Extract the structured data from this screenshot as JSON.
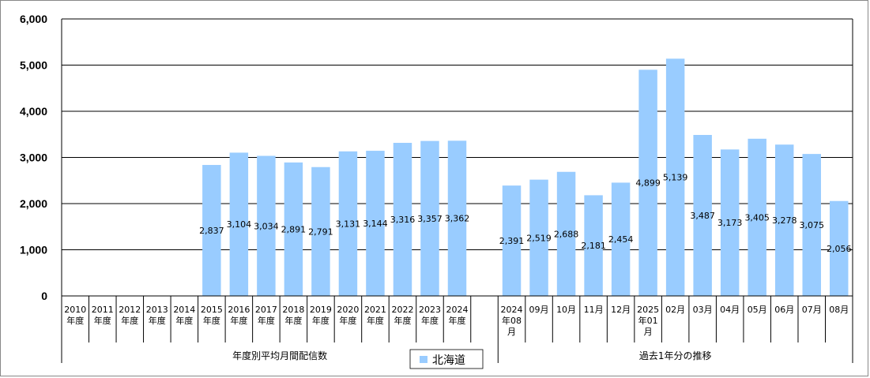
{
  "chart_data": {
    "type": "bar",
    "ylim": [
      0,
      6000
    ],
    "yticks": [
      "0",
      "1,000",
      "2,000",
      "3,000",
      "4,000",
      "5,000",
      "6,000"
    ],
    "grid": true,
    "legend_position": "bottom-center",
    "bar_color": "#99CCFF",
    "categories": [
      {
        "line1": "2010",
        "line2": "年度"
      },
      {
        "line1": "2011",
        "line2": "年度"
      },
      {
        "line1": "2012",
        "line2": "年度"
      },
      {
        "line1": "2013",
        "line2": "年度"
      },
      {
        "line1": "2014",
        "line2": "年度"
      },
      {
        "line1": "2015",
        "line2": "年度"
      },
      {
        "line1": "2016",
        "line2": "年度"
      },
      {
        "line1": "2017",
        "line2": "年度"
      },
      {
        "line1": "2018",
        "line2": "年度"
      },
      {
        "line1": "2019",
        "line2": "年度"
      },
      {
        "line1": "2020",
        "line2": "年度"
      },
      {
        "line1": "2021",
        "line2": "年度"
      },
      {
        "line1": "2022",
        "line2": "年度"
      },
      {
        "line1": "2023",
        "line2": "年度"
      },
      {
        "line1": "2024",
        "line2": "年度"
      },
      {
        "line1": "",
        "line2": ""
      },
      {
        "line1": "2024",
        "line2": "年08",
        "line3": "月"
      },
      {
        "line1": "09月"
      },
      {
        "line1": "10月"
      },
      {
        "line1": "11月"
      },
      {
        "line1": "12月"
      },
      {
        "line1": "2025",
        "line2": "年01",
        "line3": "月"
      },
      {
        "line1": "02月"
      },
      {
        "line1": "03月"
      },
      {
        "line1": "04月"
      },
      {
        "line1": "05月"
      },
      {
        "line1": "06月"
      },
      {
        "line1": "07月"
      },
      {
        "line1": "08月"
      }
    ],
    "series": [
      {
        "name": "北海道",
        "values": [
          null,
          null,
          null,
          null,
          null,
          2837,
          3104,
          3034,
          2891,
          2791,
          3131,
          3144,
          3316,
          3357,
          3362,
          null,
          2391,
          2519,
          2688,
          2181,
          2454,
          4899,
          5139,
          3487,
          3173,
          3405,
          3278,
          3075,
          2056
        ],
        "labels": [
          "",
          "",
          "",
          "",
          "",
          "2,837",
          "3,104",
          "3,034",
          "2,891",
          "2,791",
          "3,131",
          "3,144",
          "3,316",
          "3,357",
          "3,362",
          "",
          "2,391",
          "2,519",
          "2,688",
          "2,181",
          "2,454",
          "4,899",
          "5,139",
          "3,487",
          "3,173",
          "3,405",
          "3,278",
          "3,075",
          "2,056"
        ]
      }
    ],
    "groups": [
      {
        "label": "年度別平均月間配信数",
        "from": 0,
        "to": 15
      },
      {
        "label": "過去1年分の推移",
        "from": 16,
        "to": 28
      }
    ]
  }
}
